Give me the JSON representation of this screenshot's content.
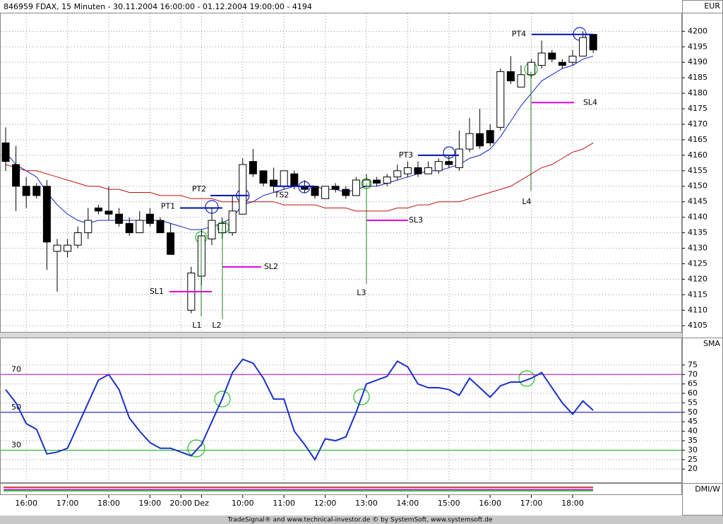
{
  "header": "846959  FDAX, 15 Minuten - 30.11.2004 16:00:00 - 01.12.2004 19:00:00 - 4194",
  "footer": "TradeSignal® and www.technical-investor.de © by SystemSoft, www.systemsoft.de",
  "chart_data": [
    {
      "type": "candlestick",
      "axis_label": "EUR",
      "categories": [
        null,
        null,
        "16:00",
        null,
        null,
        null,
        "17:00",
        null,
        null,
        null,
        "18:00",
        null,
        null,
        null,
        "19:00",
        null,
        null,
        "20:00",
        null,
        "Dez",
        null,
        null,
        null,
        "10:00",
        null,
        null,
        null,
        "11:00",
        null,
        null,
        null,
        "12:00",
        null,
        null,
        null,
        "13:00",
        null,
        null,
        null,
        "14:00",
        null,
        null,
        null,
        "15:00",
        null,
        null,
        null,
        "16:00",
        null,
        null,
        null,
        "17:00",
        null,
        null,
        null,
        "18:00",
        null,
        null
      ],
      "open": [
        4164,
        4157,
        4150,
        4150,
        4150,
        4129,
        4129,
        4131,
        4135,
        4143,
        4142,
        4141,
        4138,
        4135,
        4141,
        4139,
        4135,
        null,
        4110,
        4121,
        4133,
        4135,
        4135,
        4141,
        4158,
        4155,
        4152,
        4150,
        4154,
        4150,
        4150,
        4146,
        4150,
        4149,
        4147,
        4150,
        4152,
        4151,
        4153,
        4154,
        4156,
        4154,
        4155,
        4158,
        4156,
        4162,
        4167,
        4168,
        4169,
        4187,
        4182,
        4186,
        4189,
        4193,
        4190,
        4190,
        4192,
        4199
      ],
      "high": [
        4169,
        4163,
        4153,
        4151,
        4152,
        4133,
        4133,
        4137,
        4143,
        4144,
        4150,
        4143,
        4140,
        4142,
        4143,
        4140,
        4138,
        null,
        4124,
        4136,
        4143,
        4140,
        4147,
        4159,
        4162,
        4155,
        4156,
        4155,
        4155,
        4152,
        4150,
        4150,
        4151,
        4150,
        4153,
        4154,
        4153,
        4154,
        4157,
        4158,
        4158,
        4158,
        4159,
        4160,
        4168,
        4172,
        4175,
        4170,
        4188,
        4192,
        4189,
        4191,
        4197,
        4194,
        4191,
        4194,
        4200,
        4199
      ],
      "low": [
        4155,
        4142,
        4143,
        4146,
        4123,
        4116,
        4127,
        4130,
        4133,
        4141,
        4139,
        4137,
        4134,
        4135,
        4137,
        4135,
        4128,
        null,
        4109,
        4118,
        4131,
        4133,
        4134,
        4141,
        4153,
        4150,
        4148,
        4149,
        4149,
        4148,
        4146,
        4146,
        4148,
        4146,
        4147,
        4149,
        4150,
        4150,
        4152,
        4153,
        4153,
        4154,
        4154,
        4156,
        4155,
        4161,
        4162,
        4163,
        4168,
        4183,
        4182,
        4185,
        4188,
        4190,
        4188,
        4189,
        4192,
        4193
      ],
      "close": [
        4158,
        4150,
        4147,
        4147,
        4132,
        4131,
        4131,
        4135,
        4139,
        4142,
        4141,
        4138,
        4135,
        4139,
        4138,
        4135,
        4128,
        null,
        4122,
        4134,
        4139,
        4138,
        4142,
        4157,
        4154,
        4151,
        4150,
        4155,
        4150,
        4149,
        4147,
        4150,
        4149,
        4147,
        4152,
        4152,
        4151,
        4153,
        4155,
        4156,
        4154,
        4156,
        4158,
        4157,
        4162,
        4167,
        4163,
        4164,
        4187,
        4184,
        4186,
        4190,
        4193,
        4191,
        4189,
        4192,
        4198,
        4194
      ],
      "lines": [
        {
          "color": "#1020c0",
          "values": [
            4161,
            4157,
            4155,
            4153,
            4148,
            4144,
            4141,
            4139,
            4138,
            4139,
            4139,
            4139,
            4139,
            4139,
            4139,
            4139,
            4138,
            4137,
            4136,
            4136,
            4137,
            4138,
            4140,
            4144,
            4145,
            4147,
            4148,
            4149,
            4150,
            4150,
            4150,
            4149,
            4149,
            4148,
            4149,
            4150,
            4150,
            4151,
            4152,
            4153,
            4154,
            4155,
            4155,
            4156,
            4157,
            4159,
            4160,
            4162,
            4166,
            4171,
            4176,
            4180,
            4184,
            4186,
            4188,
            4189,
            4191,
            4192
          ]
        },
        {
          "color": "#c01010",
          "values": [
            4157,
            4156,
            4155,
            4155,
            4154,
            4153,
            4152,
            4151,
            4150,
            4150,
            4149,
            4149,
            4148,
            4148,
            4148,
            4147,
            4147,
            4147,
            4146,
            4146,
            4146,
            4145,
            4145,
            4145,
            4145,
            4145,
            4145,
            4144,
            4144,
            4144,
            4144,
            4143,
            4143,
            4143,
            4142,
            4142,
            4142,
            4142,
            4143,
            4143,
            4144,
            4144,
            4145,
            4145,
            4145,
            4146,
            4147,
            4148,
            4149,
            4150,
            4152,
            4154,
            4156,
            4157,
            4159,
            4161,
            4162,
            4164
          ]
        }
      ],
      "targets": {
        "color": "#0010b0",
        "items": [
          {
            "label": "PT1",
            "value": 4143
          },
          {
            "label": "PT2",
            "value": 4147
          },
          {
            "label": "TS2",
            "value": 4150
          },
          {
            "label": "PT3",
            "value": 4160
          },
          {
            "label": "PT4",
            "value": 4199
          }
        ]
      },
      "stops": {
        "color": "#e000e0",
        "items": [
          {
            "label": "SL1",
            "value": 4116
          },
          {
            "label": "SL2",
            "value": 4124
          },
          {
            "label": "SL3",
            "value": 4139
          },
          {
            "label": "SL4",
            "value": 4177
          }
        ]
      },
      "entries": {
        "color": "#208020",
        "items": [
          {
            "label": "L1",
            "value": 4134
          },
          {
            "label": "L2",
            "value": 4138
          },
          {
            "label": "L3",
            "value": 4151
          },
          {
            "label": "L4",
            "value": 4187
          }
        ]
      },
      "ylim": [
        4103,
        4206
      ],
      "yticks": [
        4105,
        4110,
        4115,
        4120,
        4125,
        4130,
        4135,
        4140,
        4145,
        4150,
        4155,
        4160,
        4165,
        4170,
        4175,
        4180,
        4185,
        4190,
        4195,
        4200
      ],
      "grid": true
    },
    {
      "type": "line",
      "axis_label": "SMA",
      "series": [
        {
          "color": "#1a32c8",
          "values": [
            62,
            55,
            44,
            41,
            28,
            29,
            31,
            43,
            55,
            67,
            70,
            62,
            47,
            40,
            34,
            31,
            31,
            29,
            27,
            33,
            45,
            57,
            71,
            78,
            76,
            68,
            57,
            57,
            40,
            33,
            25,
            36,
            35,
            37,
            50,
            65,
            67,
            69,
            77,
            74,
            65,
            63,
            63,
            62,
            59,
            68,
            63,
            58,
            64,
            66,
            66,
            68,
            71,
            63,
            55,
            49,
            56,
            51
          ]
        }
      ],
      "hlines": [
        {
          "value": 70,
          "color": "#c000c0"
        },
        {
          "value": 50,
          "color": "#0000a0"
        },
        {
          "value": 30,
          "color": "#10b010"
        }
      ],
      "ylim": [
        13,
        89.5
      ],
      "yticks": [
        20,
        25,
        30,
        35,
        40,
        45,
        50,
        55,
        60,
        65,
        70,
        75
      ],
      "grid": true
    },
    {
      "type": "strip",
      "axis_label": "DMI/W"
    }
  ]
}
